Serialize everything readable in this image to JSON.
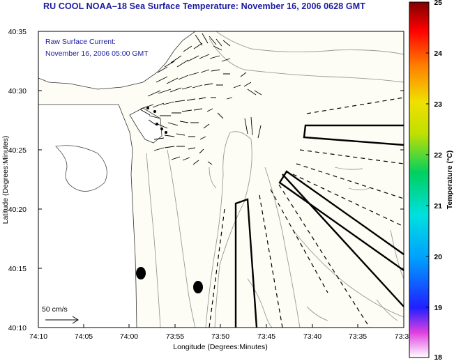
{
  "title": "RU COOL  NOAA–18  Sea Surface Temperature:  November 16, 2006 0628 GMT",
  "overlay": {
    "line1": "Raw Surface Current:",
    "line2": "November 16, 2006 05:00 GMT"
  },
  "scale_label": "50 cm/s",
  "axes": {
    "xlabel": "Longitude (Degrees:Minutes)",
    "ylabel": "Latitude (Degrees:Minutes)",
    "x_ticks": [
      "74:10",
      "74:05",
      "74:00",
      "73:55",
      "73:50",
      "73:45",
      "73:40",
      "73:35",
      "73:3"
    ],
    "y_ticks": [
      "40:35",
      "40:30",
      "40:25",
      "40:20",
      "40:15",
      "40:10"
    ]
  },
  "colorbar": {
    "label": "Temperature (°C)",
    "ticks": [
      "25",
      "24",
      "23",
      "22",
      "21",
      "20",
      "19",
      "18"
    ],
    "min": 18,
    "max": 25
  },
  "colors": {
    "title": "#1a1aa0",
    "overlay_text": "#1a1aa0",
    "land": "#ffffff",
    "sea": "#fdfdf6",
    "contour": "#999999"
  },
  "markers": [
    {
      "name": "marker-1",
      "lon": "74:00",
      "lat": "40:15"
    },
    {
      "name": "marker-2",
      "lon": "73:56",
      "lat": "40:14"
    }
  ]
}
